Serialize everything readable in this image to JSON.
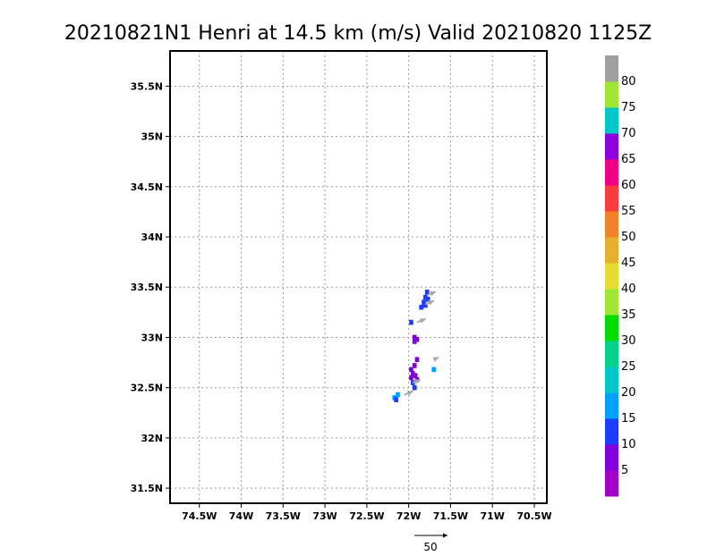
{
  "chart_data": {
    "type": "scatter",
    "title": "20210821N1 Henri at 14.5 km (m/s) Valid 20210820 1125Z",
    "xlim": [
      -74.85,
      -70.35
    ],
    "ylim": [
      31.35,
      35.85
    ],
    "grid": true,
    "x_ticks": [
      -74.5,
      -74,
      -73.5,
      -73,
      -72.5,
      -72,
      -71.5,
      -71,
      -70.5
    ],
    "x_tick_labels": [
      "74.5W",
      "74W",
      "73.5W",
      "73W",
      "72.5W",
      "72W",
      "71.5W",
      "71W",
      "70.5W"
    ],
    "y_ticks": [
      31.5,
      32,
      32.5,
      33,
      33.5,
      34,
      34.5,
      35,
      35.5
    ],
    "y_tick_labels": [
      "31.5N",
      "32N",
      "32.5N",
      "33N",
      "33.5N",
      "34N",
      "34.5N",
      "35N",
      "35.5N"
    ],
    "colorbar": {
      "levels": [
        5,
        10,
        15,
        20,
        25,
        30,
        35,
        40,
        45,
        50,
        55,
        60,
        65,
        70,
        75,
        80
      ],
      "colors": [
        "#a000c8",
        "#8200dc",
        "#1e3cff",
        "#00a0ff",
        "#00c8c8",
        "#00d28c",
        "#00dc00",
        "#a0e632",
        "#e6dc32",
        "#e6af2d",
        "#f08228",
        "#fa3c3c",
        "#f00082",
        "#8c00dc",
        "#00c8c8",
        "#a0e632",
        "#a0a0a0"
      ]
    },
    "cells": [
      {
        "lon": -71.78,
        "lat": 33.45,
        "value": 12
      },
      {
        "lon": -71.8,
        "lat": 33.4,
        "value": 12
      },
      {
        "lon": -71.82,
        "lat": 33.35,
        "value": 12
      },
      {
        "lon": -71.85,
        "lat": 33.3,
        "value": 12
      },
      {
        "lon": -71.8,
        "lat": 33.32,
        "value": 14
      },
      {
        "lon": -71.77,
        "lat": 33.38,
        "value": 14
      },
      {
        "lon": -71.97,
        "lat": 33.15,
        "value": 12
      },
      {
        "lon": -71.93,
        "lat": 33.0,
        "value": 7
      },
      {
        "lon": -71.9,
        "lat": 32.98,
        "value": 6
      },
      {
        "lon": -71.93,
        "lat": 32.96,
        "value": 5
      },
      {
        "lon": -71.9,
        "lat": 32.78,
        "value": 7
      },
      {
        "lon": -71.93,
        "lat": 32.72,
        "value": 6
      },
      {
        "lon": -71.97,
        "lat": 32.68,
        "value": 5
      },
      {
        "lon": -71.95,
        "lat": 32.64,
        "value": 7
      },
      {
        "lon": -71.92,
        "lat": 32.62,
        "value": 6
      },
      {
        "lon": -71.97,
        "lat": 32.6,
        "value": 7
      },
      {
        "lon": -71.9,
        "lat": 32.58,
        "value": 5
      },
      {
        "lon": -71.95,
        "lat": 32.55,
        "value": 12
      },
      {
        "lon": -71.93,
        "lat": 32.5,
        "value": 12
      },
      {
        "lon": -72.13,
        "lat": 32.43,
        "value": 17
      },
      {
        "lon": -72.17,
        "lat": 32.4,
        "value": 17
      },
      {
        "lon": -72.15,
        "lat": 32.38,
        "value": 12
      },
      {
        "lon": -71.7,
        "lat": 32.68,
        "value": 17
      }
    ],
    "vectors": [
      {
        "lon": -71.78,
        "lat": 33.42,
        "speed": 14
      },
      {
        "lon": -71.8,
        "lat": 33.33,
        "speed": 14
      },
      {
        "lon": -71.9,
        "lat": 33.15,
        "speed": 14
      },
      {
        "lon": -71.7,
        "lat": 32.78,
        "speed": 8
      },
      {
        "lon": -71.95,
        "lat": 32.55,
        "speed": 12
      },
      {
        "lon": -72.05,
        "lat": 32.43,
        "speed": 14
      }
    ],
    "vector_reference": {
      "value": 50,
      "label": "50"
    }
  }
}
